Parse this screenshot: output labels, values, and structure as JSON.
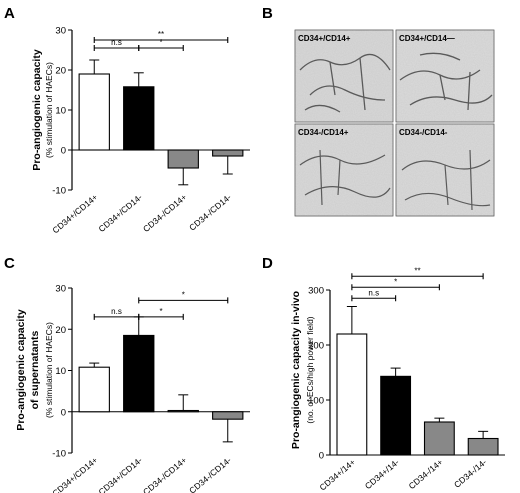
{
  "panel_letters": {
    "a": "A",
    "b": "B",
    "c": "C",
    "d": "D"
  },
  "micrograph_labels": [
    "CD34+/CD14+",
    "CD34+/CD14—",
    "CD34-/CD14+",
    "CD34-/CD14-"
  ],
  "chart_data": [
    {
      "panel": "A",
      "type": "bar",
      "ylabel": "Pro-angiogenic capacity",
      "ylabel_sub": "(% stimulation of HAECs)",
      "ylim": [
        -10,
        30
      ],
      "yticks": [
        -10,
        0,
        10,
        20,
        30
      ],
      "categories": [
        "CD34+/CD14+",
        "CD34+/CD14-",
        "CD34-/CD14+",
        "CD34-/CD14-"
      ],
      "values": [
        19,
        15.8,
        -4.5,
        -1.5
      ],
      "errors": [
        3.5,
        3.5,
        4.2,
        4.5
      ],
      "bar_colors": [
        "#ffffff",
        "#000000",
        "#888888",
        "#888888"
      ],
      "comparisons": [
        {
          "from": 0,
          "to": 3,
          "label": "**",
          "y": 27.5
        },
        {
          "from": 0,
          "to": 1,
          "label": "n.s",
          "y": 25.5
        },
        {
          "from": 1,
          "to": 2,
          "label": "*",
          "y": 25.5
        }
      ]
    },
    {
      "panel": "C",
      "type": "bar",
      "ylabel": "Pro-angiogenic capacity",
      "ylabel2": "of supernatants",
      "ylabel_sub": "(% stimulation of HAECs)",
      "ylim": [
        -10,
        30
      ],
      "yticks": [
        -10,
        0,
        10,
        20,
        30
      ],
      "categories": [
        "CD34+/CD14+",
        "CD34+/CD14-",
        "CD34-/CD14+",
        "CD34-/CD14-"
      ],
      "values": [
        10.8,
        18.5,
        0.3,
        -1.8
      ],
      "errors": [
        1.0,
        4.5,
        3.8,
        5.5
      ],
      "bar_colors": [
        "#ffffff",
        "#000000",
        "#888888",
        "#888888"
      ],
      "comparisons": [
        {
          "from": 1,
          "to": 3,
          "label": "*",
          "y": 27
        },
        {
          "from": 0,
          "to": 1,
          "label": "n.s",
          "y": 23
        },
        {
          "from": 1,
          "to": 2,
          "label": "*",
          "y": 23
        }
      ]
    },
    {
      "panel": "D",
      "type": "bar",
      "ylabel": "Pro-angiogenic capacity in-vivo",
      "ylabel_sub": "(no. of ECs/high power field)",
      "ylim": [
        0,
        300
      ],
      "yticks": [
        0,
        100,
        200,
        300
      ],
      "categories": [
        "CD34+/14+",
        "CD34+/14-",
        "CD34-/14+",
        "CD34-/14-"
      ],
      "values": [
        220,
        143,
        60,
        30
      ],
      "errors": [
        50,
        15,
        7,
        13
      ],
      "bar_colors": [
        "#ffffff",
        "#000000",
        "#888888",
        "#888888"
      ],
      "comparisons": [
        {
          "from": 0,
          "to": 3,
          "label": "**",
          "y": 325
        },
        {
          "from": 0,
          "to": 2,
          "label": "*",
          "y": 305
        },
        {
          "from": 0,
          "to": 1,
          "label": "n.s",
          "y": 285
        }
      ]
    }
  ]
}
